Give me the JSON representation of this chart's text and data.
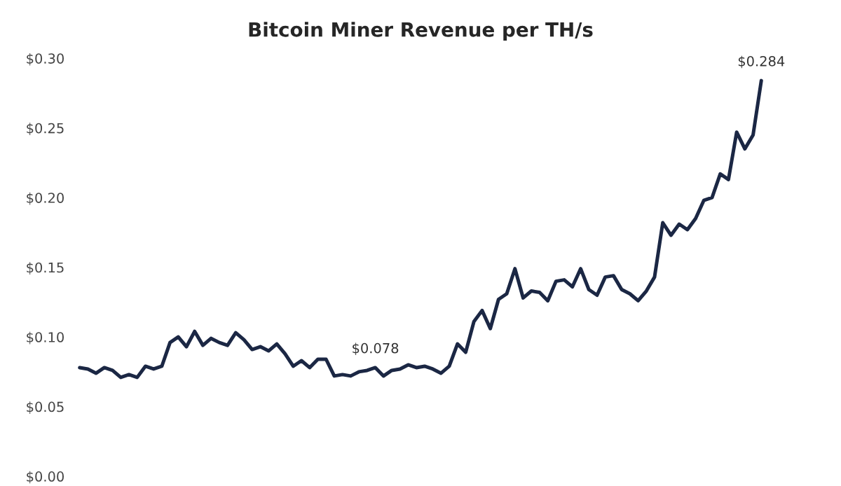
{
  "chart_data": {
    "type": "line",
    "title": "Bitcoin Miner Revenue per TH/s",
    "categories": [
      null,
      null,
      null,
      null,
      null,
      null,
      null,
      null,
      null,
      null,
      null,
      null,
      null,
      null,
      null,
      null,
      null,
      null,
      null,
      null,
      null,
      null,
      null,
      null,
      null,
      null,
      null,
      null,
      null,
      null,
      null,
      null,
      null,
      null,
      null,
      null,
      null,
      null,
      null,
      null,
      null,
      null,
      null,
      null,
      null,
      null,
      null,
      null,
      null,
      null,
      null,
      null,
      null,
      null,
      null,
      null,
      null,
      null,
      null,
      null,
      null,
      null,
      null,
      null,
      null,
      null,
      null,
      null,
      null,
      null,
      null,
      null,
      null,
      null,
      null,
      null,
      null,
      null,
      null,
      null,
      null,
      null,
      null,
      null
    ],
    "series": [
      {
        "color": "#1b2744",
        "values": [
          0.078,
          0.077,
          0.074,
          0.078,
          0.076,
          0.071,
          0.073,
          0.071,
          0.079,
          0.077,
          0.079,
          0.096,
          0.1,
          0.093,
          0.104,
          0.094,
          0.099,
          0.096,
          0.094,
          0.103,
          0.098,
          0.091,
          0.093,
          0.09,
          0.095,
          0.088,
          0.079,
          0.083,
          0.078,
          0.084,
          0.084,
          0.072,
          0.073,
          0.072,
          0.075,
          0.076,
          0.078,
          0.072,
          0.076,
          0.077,
          0.08,
          0.078,
          0.079,
          0.077,
          0.074,
          0.079,
          0.095,
          0.089,
          0.111,
          0.119,
          0.106,
          0.127,
          0.131,
          0.149,
          0.128,
          0.133,
          0.132,
          0.126,
          0.14,
          0.141,
          0.136,
          0.149,
          0.134,
          0.13,
          0.143,
          0.144,
          0.134,
          0.131,
          0.126,
          0.133,
          0.143,
          0.182,
          0.173,
          0.181,
          0.177,
          0.185,
          0.198,
          0.2,
          0.217,
          0.213,
          0.247,
          0.235,
          0.245,
          0.284
        ],
        "value_labels": [
          null,
          null,
          null,
          null,
          null,
          null,
          null,
          null,
          null,
          null,
          null,
          null,
          null,
          null,
          null,
          null,
          null,
          null,
          null,
          null,
          null,
          null,
          null,
          null,
          null,
          null,
          null,
          null,
          null,
          null,
          null,
          null,
          null,
          null,
          null,
          null,
          "$0.078",
          null,
          null,
          null,
          null,
          null,
          null,
          null,
          null,
          null,
          null,
          null,
          null,
          null,
          null,
          null,
          null,
          null,
          null,
          null,
          null,
          null,
          null,
          null,
          null,
          null,
          null,
          null,
          null,
          null,
          null,
          null,
          null,
          null,
          null,
          null,
          null,
          null,
          null,
          null,
          null,
          null,
          null,
          null,
          null,
          null,
          null,
          "$0.284"
        ]
      }
    ],
    "ylim": [
      0,
      0.3
    ],
    "yticks": [
      {
        "value": 0,
        "label": "$0.00"
      },
      {
        "value": 0.05,
        "label": "$0.05"
      },
      {
        "value": 0.1,
        "label": "$0.10"
      },
      {
        "value": 0.15,
        "label": "$0.15"
      },
      {
        "value": 0.2,
        "label": "$0.20"
      },
      {
        "value": 0.25,
        "label": "$0.25"
      },
      {
        "value": 0.3,
        "label": "$0.30"
      }
    ],
    "tick_labels": "y",
    "grid": false,
    "legend": false
  }
}
